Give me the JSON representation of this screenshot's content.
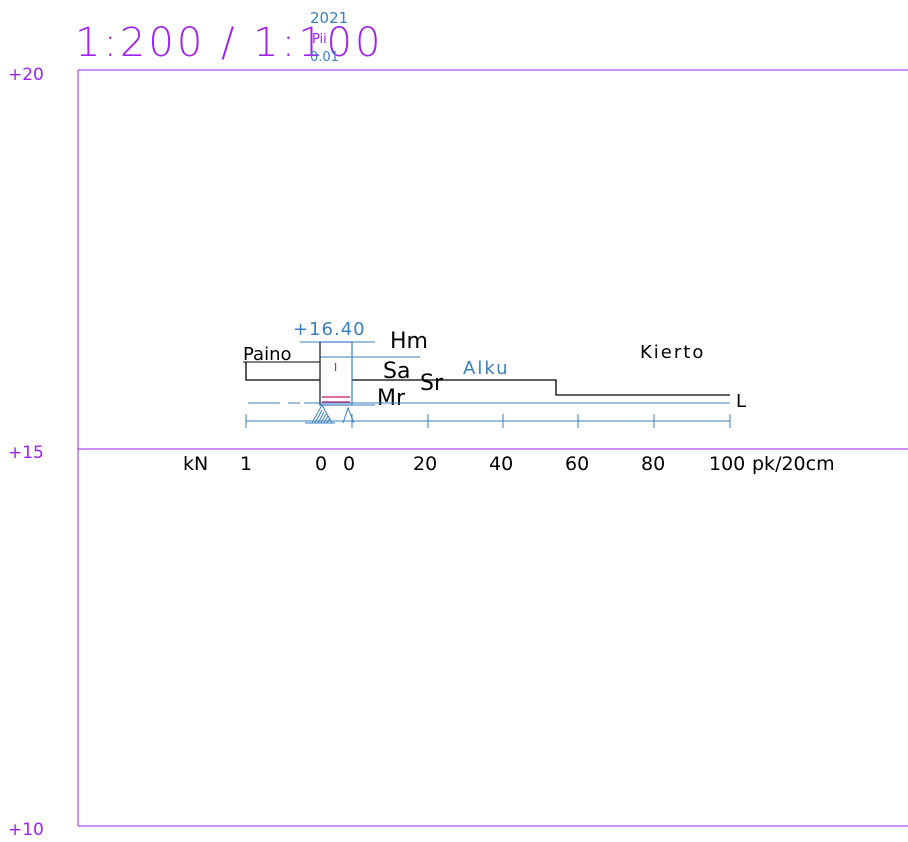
{
  "header": {
    "scale": "1:200 / 1:100",
    "year": "2021",
    "code": "Pii",
    "sub": "0.01"
  },
  "elevations": {
    "top": "+20",
    "mid": "+15",
    "bottom": "+10"
  },
  "profile": {
    "surface_level": "+16.40",
    "soil_hm": "Hm",
    "soil_sa": "Sa",
    "soil_sr": "Sr",
    "soil_mr": "Mr",
    "paino_label": "Paino",
    "kierto_label": "Kierto",
    "alku_label": "Alku",
    "l_label": "L",
    "mark_i": "I"
  },
  "axis": {
    "unit_left": "kN",
    "tick_1": "1",
    "tick_0a": "0",
    "tick_0b": "0",
    "ticks": [
      "20",
      "40",
      "60",
      "80"
    ],
    "tick_100": "100",
    "unit_right": "pk/20cm"
  },
  "colors": {
    "frame": "#a020f0",
    "blue": "#3a7fc1",
    "black": "#000000",
    "magenta": "#c0186c"
  }
}
